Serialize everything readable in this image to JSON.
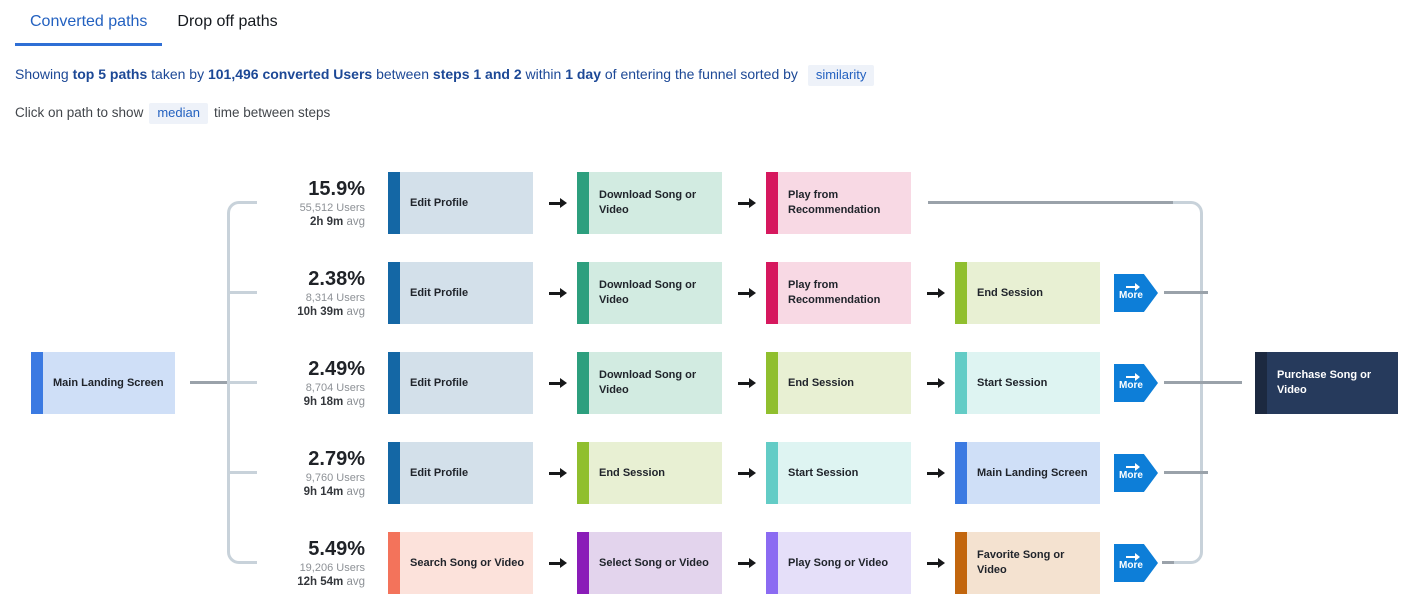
{
  "tabs": [
    {
      "label": "Converted paths",
      "active": true
    },
    {
      "label": "Drop off paths",
      "active": false
    }
  ],
  "subtitle": {
    "segments": [
      {
        "text": "Showing ",
        "bold": false
      },
      {
        "text": "top 5 paths",
        "bold": true
      },
      {
        "text": " taken by ",
        "bold": false
      },
      {
        "text": "101,496 converted Users",
        "bold": true
      },
      {
        "text": " between ",
        "bold": false
      },
      {
        "text": "steps 1 and 2",
        "bold": true
      },
      {
        "text": " within ",
        "bold": false
      },
      {
        "text": "1 day",
        "bold": true
      },
      {
        "text": " of entering the funnel sorted by ",
        "bold": false
      }
    ],
    "chip": "similarity"
  },
  "hint": {
    "prefix": "Click on path to show",
    "chip": "median",
    "suffix": "time between steps"
  },
  "start_node": {
    "label": "Main Landing Screen",
    "border": "#3b7ae2",
    "fill": "#cfdff7"
  },
  "end_node": {
    "label": "Purchase Song or Video",
    "border": "#1c2940",
    "fill": "#263a5c",
    "text_color": "#ffffff"
  },
  "more_label": "More",
  "colors": {
    "accent_blue": "#2361c0",
    "tab_underline": "#2f6fd5",
    "chip_bg": "#eef2f9",
    "subtitle_text": "#1c4896",
    "hint_text": "#42464b",
    "connector_light": "#c8d2da",
    "connector_dark": "#9aa2aa",
    "more_button": "#0d7ed8"
  },
  "paths": [
    {
      "percent": "15.9%",
      "users": "55,512 Users",
      "avg_time": "2h 9m",
      "avg_suffix": "avg",
      "more": false,
      "nodes": [
        {
          "label": "Edit Profile",
          "border": "#1467a5",
          "fill": "#d3e0ea"
        },
        {
          "label": "Download Song or Video",
          "border": "#2d9f7e",
          "fill": "#d2ebe1"
        },
        {
          "label": "Play from Recommendation",
          "border": "#d6185e",
          "fill": "#f8d9e4"
        }
      ]
    },
    {
      "percent": "2.38%",
      "users": "8,314 Users",
      "avg_time": "10h 39m",
      "avg_suffix": "avg",
      "more": true,
      "nodes": [
        {
          "label": "Edit Profile",
          "border": "#1467a5",
          "fill": "#d3e0ea"
        },
        {
          "label": "Download Song or Video",
          "border": "#2d9f7e",
          "fill": "#d2ebe1"
        },
        {
          "label": "Play from Recommendation",
          "border": "#d6185e",
          "fill": "#f8d9e4"
        },
        {
          "label": "End Session",
          "border": "#90bf2e",
          "fill": "#e8f0d3"
        }
      ]
    },
    {
      "percent": "2.49%",
      "users": "8,704 Users",
      "avg_time": "9h 18m",
      "avg_suffix": "avg",
      "more": true,
      "nodes": [
        {
          "label": "Edit Profile",
          "border": "#1467a5",
          "fill": "#d3e0ea"
        },
        {
          "label": "Download Song or Video",
          "border": "#2d9f7e",
          "fill": "#d2ebe1"
        },
        {
          "label": "End Session",
          "border": "#90bf2e",
          "fill": "#e8f0d3"
        },
        {
          "label": "Start Session",
          "border": "#63ccc6",
          "fill": "#def4f2"
        }
      ]
    },
    {
      "percent": "2.79%",
      "users": "9,760 Users",
      "avg_time": "9h 14m",
      "avg_suffix": "avg",
      "more": true,
      "nodes": [
        {
          "label": "Edit Profile",
          "border": "#1467a5",
          "fill": "#d3e0ea"
        },
        {
          "label": "End Session",
          "border": "#90bf2e",
          "fill": "#e8f0d3"
        },
        {
          "label": "Start Session",
          "border": "#63ccc6",
          "fill": "#def4f2"
        },
        {
          "label": "Main Landing Screen",
          "border": "#3b7ae2",
          "fill": "#cfdff7"
        }
      ]
    },
    {
      "percent": "5.49%",
      "users": "19,206 Users",
      "avg_time": "12h 54m",
      "avg_suffix": "avg",
      "more": true,
      "nodes": [
        {
          "label": "Search Song or Video",
          "border": "#f3735b",
          "fill": "#fce2db"
        },
        {
          "label": "Select Song or Video",
          "border": "#8a1cb8",
          "fill": "#e3d4ed"
        },
        {
          "label": "Play Song or Video",
          "border": "#8b6bf2",
          "fill": "#e5dff9"
        },
        {
          "label": "Favorite Song or Video",
          "border": "#c2660e",
          "fill": "#f4e2d0"
        }
      ]
    }
  ]
}
